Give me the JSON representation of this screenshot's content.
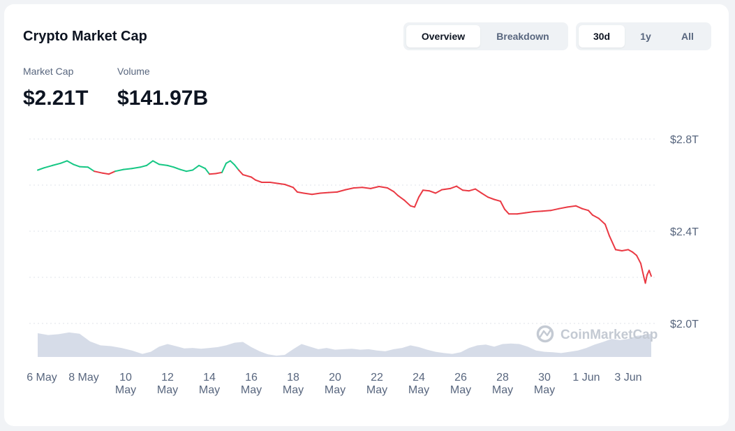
{
  "widget": {
    "title": "Crypto Market Cap",
    "view_tabs": [
      {
        "label": "Overview",
        "active": true
      },
      {
        "label": "Breakdown",
        "active": false
      }
    ],
    "range_tabs": [
      {
        "label": "30d",
        "active": true
      },
      {
        "label": "1y",
        "active": false
      },
      {
        "label": "All",
        "active": false
      }
    ],
    "stats": [
      {
        "label": "Market Cap",
        "value": "$2.21T"
      },
      {
        "label": "Volume",
        "value": "$141.97B"
      }
    ],
    "watermark": "CoinMarketCap"
  },
  "colors": {
    "up": "#16c784",
    "down": "#ea3943",
    "volume": "#cfd6e4",
    "grid": "#dfe3ea",
    "axis_text": "#58667e"
  },
  "icons": [
    "coinmarketcap-logo-icon"
  ],
  "chart_data": {
    "type": "line",
    "title": "",
    "xlabel": "",
    "ylabel": "",
    "baseline": 2.66,
    "ylim": [
      2.0,
      2.8
    ],
    "yticks": [
      {
        "value": 2.8,
        "label": "$2.8T"
      },
      {
        "value": 2.4,
        "label": "$2.4T"
      },
      {
        "value": 2.0,
        "label": "$2.0T"
      }
    ],
    "xlim": [
      5.8,
      35.1
    ],
    "xticks": [
      {
        "x": 6,
        "label": [
          "6 May"
        ]
      },
      {
        "x": 8,
        "label": [
          "8 May"
        ]
      },
      {
        "x": 10,
        "label": [
          "10",
          "May"
        ]
      },
      {
        "x": 12,
        "label": [
          "12",
          "May"
        ]
      },
      {
        "x": 14,
        "label": [
          "14",
          "May"
        ]
      },
      {
        "x": 16,
        "label": [
          "16",
          "May"
        ]
      },
      {
        "x": 18,
        "label": [
          "18",
          "May"
        ]
      },
      {
        "x": 20,
        "label": [
          "20",
          "May"
        ]
      },
      {
        "x": 22,
        "label": [
          "22",
          "May"
        ]
      },
      {
        "x": 24,
        "label": [
          "24",
          "May"
        ]
      },
      {
        "x": 26,
        "label": [
          "26",
          "May"
        ]
      },
      {
        "x": 28,
        "label": [
          "28",
          "May"
        ]
      },
      {
        "x": 30,
        "label": [
          "30",
          "May"
        ]
      },
      {
        "x": 32,
        "label": [
          "1 Jun"
        ]
      },
      {
        "x": 34,
        "label": [
          "3 Jun"
        ]
      }
    ],
    "series": [
      {
        "values": [
          [
            5.8,
            2.665
          ],
          [
            6.1,
            2.675
          ],
          [
            6.5,
            2.685
          ],
          [
            6.9,
            2.695
          ],
          [
            7.2,
            2.705
          ],
          [
            7.5,
            2.69
          ],
          [
            7.8,
            2.68
          ],
          [
            8.2,
            2.678
          ],
          [
            8.5,
            2.66
          ],
          [
            8.9,
            2.652
          ],
          [
            9.2,
            2.648
          ],
          [
            9.5,
            2.66
          ],
          [
            9.9,
            2.668
          ],
          [
            10.3,
            2.672
          ],
          [
            10.7,
            2.678
          ],
          [
            11.0,
            2.685
          ],
          [
            11.3,
            2.705
          ],
          [
            11.6,
            2.69
          ],
          [
            12.0,
            2.685
          ],
          [
            12.3,
            2.678
          ],
          [
            12.6,
            2.668
          ],
          [
            12.9,
            2.66
          ],
          [
            13.2,
            2.665
          ],
          [
            13.5,
            2.685
          ],
          [
            13.8,
            2.672
          ],
          [
            14.0,
            2.648
          ],
          [
            14.3,
            2.65
          ],
          [
            14.6,
            2.655
          ],
          [
            14.8,
            2.695
          ],
          [
            15.0,
            2.705
          ],
          [
            15.2,
            2.688
          ],
          [
            15.4,
            2.665
          ],
          [
            15.6,
            2.645
          ],
          [
            16.0,
            2.635
          ],
          [
            16.2,
            2.622
          ],
          [
            16.5,
            2.612
          ],
          [
            16.9,
            2.612
          ],
          [
            17.3,
            2.607
          ],
          [
            17.6,
            2.603
          ],
          [
            18.0,
            2.59
          ],
          [
            18.2,
            2.57
          ],
          [
            18.5,
            2.565
          ],
          [
            18.9,
            2.56
          ],
          [
            19.3,
            2.565
          ],
          [
            19.7,
            2.568
          ],
          [
            20.1,
            2.57
          ],
          [
            20.5,
            2.58
          ],
          [
            20.9,
            2.588
          ],
          [
            21.3,
            2.59
          ],
          [
            21.7,
            2.585
          ],
          [
            22.1,
            2.594
          ],
          [
            22.5,
            2.588
          ],
          [
            22.8,
            2.572
          ],
          [
            23.0,
            2.555
          ],
          [
            23.3,
            2.535
          ],
          [
            23.6,
            2.51
          ],
          [
            23.8,
            2.505
          ],
          [
            24.0,
            2.548
          ],
          [
            24.2,
            2.578
          ],
          [
            24.5,
            2.575
          ],
          [
            24.8,
            2.565
          ],
          [
            25.1,
            2.58
          ],
          [
            25.5,
            2.585
          ],
          [
            25.8,
            2.595
          ],
          [
            26.1,
            2.578
          ],
          [
            26.4,
            2.575
          ],
          [
            26.7,
            2.583
          ],
          [
            27.0,
            2.565
          ],
          [
            27.3,
            2.548
          ],
          [
            27.6,
            2.538
          ],
          [
            27.9,
            2.53
          ],
          [
            28.1,
            2.495
          ],
          [
            28.3,
            2.475
          ],
          [
            28.7,
            2.475
          ],
          [
            29.1,
            2.48
          ],
          [
            29.5,
            2.485
          ],
          [
            29.9,
            2.487
          ],
          [
            30.3,
            2.49
          ],
          [
            30.7,
            2.498
          ],
          [
            31.1,
            2.505
          ],
          [
            31.5,
            2.51
          ],
          [
            31.8,
            2.498
          ],
          [
            32.1,
            2.49
          ],
          [
            32.3,
            2.47
          ],
          [
            32.6,
            2.455
          ],
          [
            32.9,
            2.43
          ],
          [
            33.1,
            2.38
          ],
          [
            33.4,
            2.32
          ],
          [
            33.7,
            2.315
          ],
          [
            34.0,
            2.32
          ],
          [
            34.2,
            2.31
          ],
          [
            34.4,
            2.295
          ],
          [
            34.6,
            2.26
          ],
          [
            34.75,
            2.2
          ],
          [
            34.82,
            2.175
          ],
          [
            34.9,
            2.21
          ],
          [
            35.0,
            2.23
          ],
          [
            35.1,
            2.205
          ]
        ]
      },
      {
        "type": "bar",
        "values": [
          [
            5.8,
            0.92
          ],
          [
            6.3,
            0.85
          ],
          [
            6.8,
            0.88
          ],
          [
            7.3,
            0.95
          ],
          [
            7.8,
            0.9
          ],
          [
            8.3,
            0.6
          ],
          [
            8.8,
            0.45
          ],
          [
            9.3,
            0.42
          ],
          [
            9.8,
            0.35
          ],
          [
            10.3,
            0.25
          ],
          [
            10.8,
            0.12
          ],
          [
            11.2,
            0.2
          ],
          [
            11.6,
            0.4
          ],
          [
            12.0,
            0.5
          ],
          [
            12.4,
            0.42
          ],
          [
            12.8,
            0.33
          ],
          [
            13.2,
            0.35
          ],
          [
            13.6,
            0.32
          ],
          [
            14.0,
            0.35
          ],
          [
            14.4,
            0.38
          ],
          [
            14.8,
            0.45
          ],
          [
            15.2,
            0.55
          ],
          [
            15.6,
            0.58
          ],
          [
            16.0,
            0.38
          ],
          [
            16.4,
            0.22
          ],
          [
            16.8,
            0.1
          ],
          [
            17.2,
            0.05
          ],
          [
            17.6,
            0.08
          ],
          [
            18.0,
            0.3
          ],
          [
            18.4,
            0.5
          ],
          [
            18.8,
            0.4
          ],
          [
            19.2,
            0.3
          ],
          [
            19.6,
            0.35
          ],
          [
            20.0,
            0.28
          ],
          [
            20.4,
            0.3
          ],
          [
            20.8,
            0.32
          ],
          [
            21.2,
            0.28
          ],
          [
            21.6,
            0.3
          ],
          [
            22.0,
            0.25
          ],
          [
            22.4,
            0.22
          ],
          [
            22.8,
            0.3
          ],
          [
            23.2,
            0.35
          ],
          [
            23.6,
            0.45
          ],
          [
            24.0,
            0.38
          ],
          [
            24.4,
            0.28
          ],
          [
            24.8,
            0.2
          ],
          [
            25.2,
            0.15
          ],
          [
            25.6,
            0.12
          ],
          [
            26.0,
            0.18
          ],
          [
            26.4,
            0.35
          ],
          [
            26.8,
            0.45
          ],
          [
            27.2,
            0.48
          ],
          [
            27.6,
            0.4
          ],
          [
            28.0,
            0.5
          ],
          [
            28.4,
            0.52
          ],
          [
            28.8,
            0.5
          ],
          [
            29.2,
            0.4
          ],
          [
            29.6,
            0.25
          ],
          [
            30.0,
            0.2
          ],
          [
            30.4,
            0.18
          ],
          [
            30.8,
            0.15
          ],
          [
            31.2,
            0.2
          ],
          [
            31.6,
            0.25
          ],
          [
            32.0,
            0.35
          ],
          [
            32.4,
            0.48
          ],
          [
            32.8,
            0.58
          ],
          [
            33.2,
            0.7
          ],
          [
            33.6,
            0.65
          ],
          [
            34.0,
            0.7
          ],
          [
            34.4,
            0.82
          ],
          [
            34.8,
            0.85
          ],
          [
            35.1,
            0.9
          ]
        ]
      }
    ]
  }
}
